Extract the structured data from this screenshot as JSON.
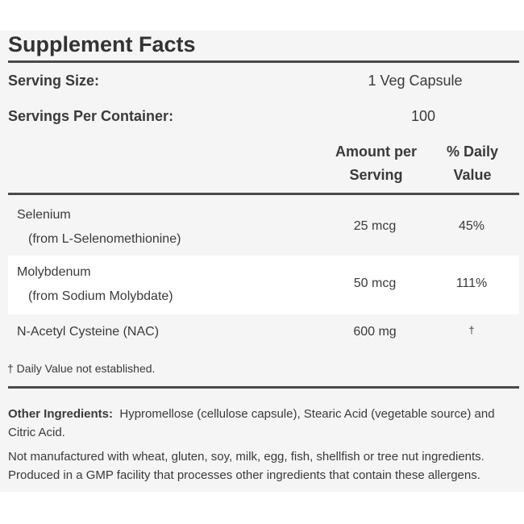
{
  "title": "Supplement Facts",
  "serving": {
    "size_label": "Serving Size:",
    "size_value": "1 Veg Capsule",
    "per_container_label": "Servings Per Container:",
    "per_container_value": "100"
  },
  "table_headers": {
    "amount_line1": "Amount per",
    "amount_line2": "Serving",
    "dv_line1": "% Daily",
    "dv_line2": "Value"
  },
  "nutrients": [
    {
      "name": "Selenium",
      "source": "(from L-Selenomethionine)",
      "amount": "25 mcg",
      "dv": "45%"
    },
    {
      "name": "Molybdenum",
      "source": "(from Sodium Molybdate)",
      "amount": "50 mcg",
      "dv": "111%"
    },
    {
      "name": "N-Acetyl Cysteine (NAC)",
      "source": "",
      "amount": "600 mg",
      "dv": "†"
    }
  ],
  "footnote": "† Daily Value not established.",
  "other_ingredients": {
    "label": "Other Ingredients:",
    "text": "Hypromellose (cellulose capsule), Stearic Acid (vegetable source) and Citric Acid."
  },
  "allergen_notice": "Not manufactured with wheat, gluten, soy, milk, egg, fish, shellfish or tree nut ingredients. Produced in a GMP facility that processes other ingredients that contain these allergens.",
  "colors": {
    "panel_bg": "#f5f5f5",
    "text": "#3a3a3a",
    "rule": "#4a4a4a"
  }
}
